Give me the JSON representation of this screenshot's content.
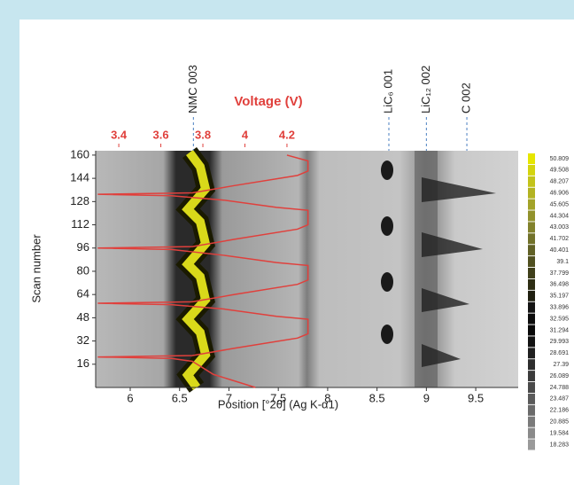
{
  "chart_data": {
    "type": "line",
    "x_label": "Position [°2θ] (Ag K-α1)",
    "y_label": "Scan number",
    "x2_label": "Voltage (V)",
    "xlim": [
      5.65,
      9.93
    ],
    "xticks": [
      6,
      6.5,
      7,
      7.5,
      8,
      8.5,
      9,
      9.5
    ],
    "ylim": [
      0,
      163
    ],
    "yticks": [
      16,
      32,
      48,
      64,
      80,
      96,
      112,
      128,
      144,
      160
    ],
    "x2lim": [
      3.29,
      5.3
    ],
    "x2ticks": [
      3.4,
      3.6,
      3.8,
      4,
      4.2
    ],
    "series": [
      {
        "color": "#e0403c",
        "axis": "x2",
        "voltage": [
          4.05,
          3.85,
          3.75,
          3.65,
          3.3,
          3.75,
          3.95,
          4.25,
          4.3,
          4.3,
          4.15,
          3.9,
          3.65,
          3.3,
          3.75,
          3.95,
          4.25,
          4.3,
          4.3,
          4.15,
          3.9,
          3.65,
          3.3,
          3.75,
          3.95,
          4.25,
          4.3,
          4.3,
          4.15,
          3.9,
          3.65,
          3.3,
          3.75,
          3.95,
          4.25,
          4.3,
          4.3,
          4.2
        ],
        "scan": [
          0,
          9,
          18,
          20,
          21,
          22,
          27,
          34,
          37,
          47,
          49,
          54,
          57,
          58,
          59,
          64,
          71,
          74,
          84,
          86,
          91,
          95,
          96,
          97,
          102,
          109,
          112,
          122,
          124,
          129,
          132,
          133,
          134,
          139,
          146,
          149,
          156,
          160
        ]
      }
    ],
    "annotations": [
      {
        "text": "NMC 003",
        "x": 6.64
      },
      {
        "text": "LiC₆ 001",
        "x": 8.62
      },
      {
        "text": "LiC₁₂ 002",
        "x": 9.0
      },
      {
        "text": "C 002",
        "x": 9.41
      }
    ],
    "colorbar": {
      "labels": [
        50.809,
        49.508,
        48.207,
        46.906,
        45.605,
        44.304,
        43.003,
        41.702,
        40.401,
        39.1,
        37.799,
        36.498,
        35.197,
        33.896,
        32.595,
        31.294,
        29.993,
        28.691,
        27.39,
        26.089,
        24.788,
        23.487,
        22.186,
        20.885,
        19.584,
        18.283
      ],
      "colors": [
        "#e6e600",
        "#d4d40e",
        "#c3c31a",
        "#b3b322",
        "#a3a329",
        "#92922c",
        "#82822c",
        "#72722a",
        "#616126",
        "#505020",
        "#3f3f1a",
        "#2e2e14",
        "#1f1f10",
        "#141414",
        "#0c0c0c",
        "#080808",
        "#121212",
        "#1f1f1f",
        "#2d2d2d",
        "#3b3b3b",
        "#4a4a4a",
        "#5a5a5a",
        "#6a6a6a",
        "#7a7a7a",
        "#8a8a8a",
        "#9a9a9a"
      ]
    }
  }
}
